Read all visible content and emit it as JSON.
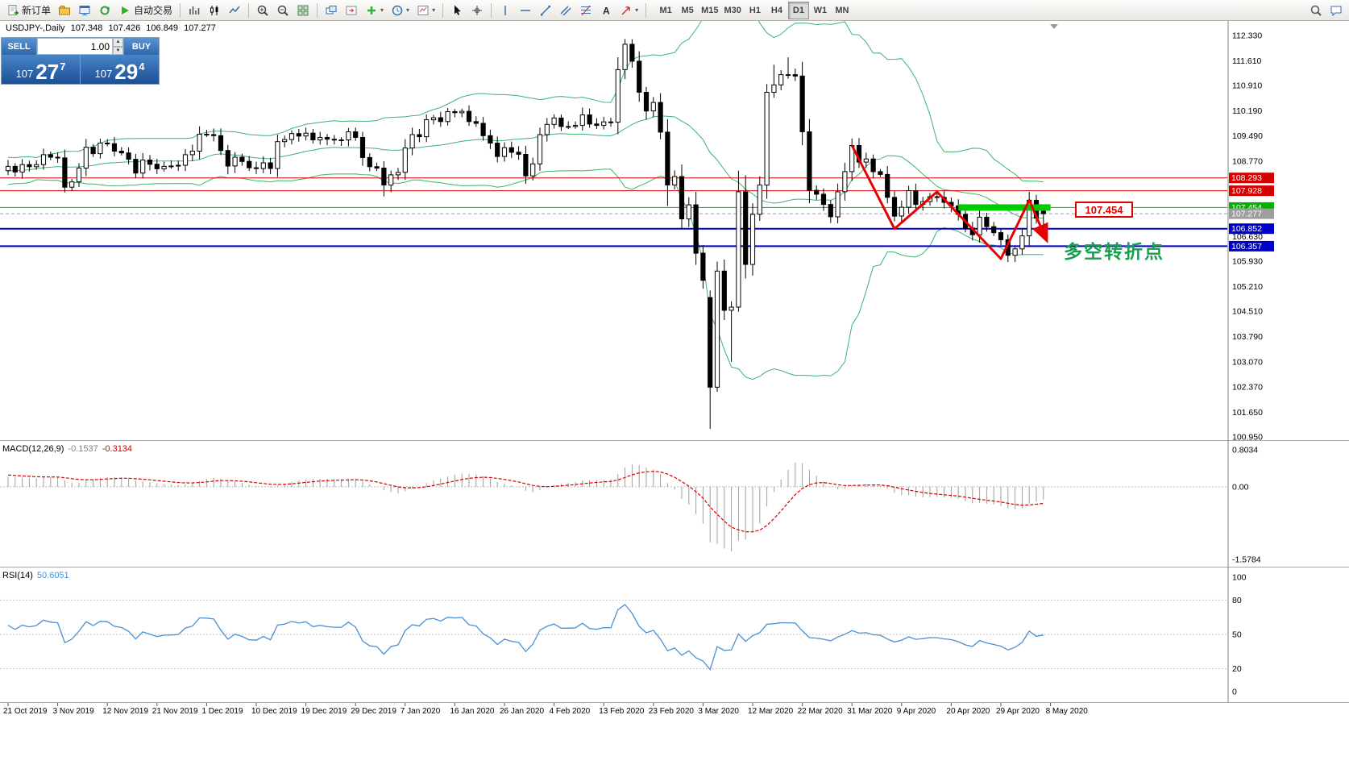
{
  "header": {
    "symbol": "USDJPY-,Daily",
    "open": "107.348",
    "high": "107.426",
    "low": "106.849",
    "close": "107.277"
  },
  "toolbar": {
    "new_order_label": "新订单",
    "autotrading_label": "自动交易",
    "timeframes": [
      "M1",
      "M5",
      "M15",
      "M30",
      "H1",
      "H4",
      "D1",
      "W1",
      "MN"
    ],
    "active_timeframe": "D1"
  },
  "icons": {
    "dropdown": "▾",
    "spinner_up": "▲",
    "spinner_down": "▼",
    "text_tool": "A"
  },
  "trade_panel": {
    "sell_label": "SELL",
    "buy_label": "BUY",
    "volume": "1.00",
    "sell_price": {
      "prefix": "107",
      "big": "27",
      "sup": "7"
    },
    "buy_price": {
      "prefix": "107",
      "big": "29",
      "sup": "4"
    }
  },
  "indicators": {
    "macd_name": "MACD(12,26,9)",
    "macd_main": "-0.1537",
    "macd_signal": "-0.3134",
    "rsi_name": "RSI(14)",
    "rsi_value": "50.6051"
  },
  "annotations": {
    "turning_point": "多空转折点",
    "level_label": "107.454"
  },
  "colors": {
    "bull": "#ffffff",
    "bear": "#000000",
    "outline": "#000000",
    "bollinger": "#3cb371",
    "zone": "#00cc00",
    "zigzag": "#e60000",
    "macd_hist": "#9e9e9e",
    "macd_signal": "#d40000",
    "rsi_line": "#4a90d2",
    "current": "#9e9e9e",
    "accent_blue": "#2f66ac",
    "annotation_green": "#15a04c",
    "hline_red": "#d40000",
    "hline_green": "#00b300",
    "hline_blue": "#0000cc"
  },
  "chart_data": {
    "type": "candlestick",
    "symbol": "USDJPY",
    "period": "Daily",
    "current_bar": {
      "open": 107.348,
      "high": 107.426,
      "low": 106.849,
      "close": 107.277
    },
    "y_axis": {
      "top_price": 112.33,
      "bottom_price": 100.95
    },
    "pre_closes": [
      107.05,
      107.25,
      107.45,
      107.2,
      106.95,
      107.25,
      107.55,
      107.8,
      108.05,
      107.85,
      107.6,
      107.9,
      108.1,
      108.0,
      107.7,
      107.45,
      107.2,
      107.05,
      107.35,
      107.65,
      107.95,
      108.25,
      108.45,
      108.3,
      108.1,
      108.4,
      108.6,
      108.5,
      108.3,
      108.2,
      108.45,
      108.7,
      108.6,
      108.5,
      108.7,
      108.9,
      108.7,
      108.6,
      108.4,
      108.5
    ],
    "closes": [
      108.62,
      108.46,
      108.67,
      108.61,
      108.67,
      108.95,
      108.88,
      108.86,
      108.03,
      108.18,
      108.57,
      109.16,
      108.98,
      109.28,
      109.26,
      109.05,
      109.0,
      108.82,
      108.43,
      108.8,
      108.68,
      108.55,
      108.62,
      108.63,
      108.65,
      108.95,
      109.05,
      109.53,
      109.52,
      109.49,
      109.07,
      108.63,
      108.88,
      108.76,
      108.58,
      108.56,
      108.72,
      108.56,
      109.32,
      109.38,
      109.55,
      109.48,
      109.56,
      109.37,
      109.44,
      109.39,
      109.37,
      109.37,
      109.6,
      109.44,
      108.87,
      108.61,
      108.57,
      108.09,
      108.38,
      108.45,
      109.14,
      109.52,
      109.46,
      109.94,
      110.0,
      109.89,
      110.17,
      110.14,
      110.18,
      109.89,
      109.84,
      109.49,
      109.28,
      108.9,
      109.15,
      109.02,
      108.96,
      108.35,
      108.69,
      109.52,
      109.81,
      109.99,
      109.75,
      109.75,
      109.78,
      110.08,
      109.82,
      109.78,
      109.88,
      109.87,
      111.36,
      112.08,
      111.6,
      110.72,
      110.19,
      110.43,
      109.59,
      108.09,
      108.33,
      107.13,
      107.53,
      106.16,
      105.39,
      102.36,
      105.65,
      104.54,
      104.63,
      107.9,
      105.84,
      107.26,
      108.09,
      110.72,
      110.93,
      111.22,
      111.22,
      111.18,
      109.6,
      107.94,
      107.83,
      107.54,
      107.19,
      107.9,
      108.47,
      109.21,
      108.74,
      108.83,
      108.47,
      108.39,
      107.74,
      107.21,
      107.46,
      107.93,
      107.54,
      107.62,
      107.76,
      107.74,
      107.6,
      107.5,
      107.26,
      106.87,
      106.68,
      107.18,
      106.91,
      106.74,
      106.54,
      106.1,
      106.28,
      106.65,
      107.66,
      107.15,
      107.277
    ],
    "overrides": {
      "8": {
        "l": 107.88
      },
      "53": {
        "l": 107.77
      },
      "87": {
        "h": 112.23
      },
      "93": {
        "l": 107.5
      },
      "99": {
        "o": 104.9,
        "h": 105.1,
        "l": 101.18
      },
      "100": {
        "h": 105.92,
        "l": 102.23
      },
      "102": {
        "l": 103.08
      },
      "103": {
        "h": 108.5,
        "l": 104.5
      },
      "107": {
        "h": 110.95,
        "l": 107.7
      },
      "108": {
        "h": 111.5
      },
      "110": {
        "h": 111.71
      },
      "146": {
        "o": 107.348,
        "h": 107.426,
        "l": 106.849
      }
    },
    "hlines": [
      {
        "price": 108.293,
        "label": "108.293",
        "color": "#d40000",
        "width": 1
      },
      {
        "price": 107.928,
        "label": "107.928",
        "color": "#d40000",
        "width": 1
      },
      {
        "price": 107.454,
        "label": "107.454",
        "color": "#00b300",
        "width": 1
      },
      {
        "price": 106.852,
        "label": "106.852",
        "color": "#0000cc",
        "width": 2
      },
      {
        "price": 106.357,
        "label": "106.357",
        "color": "#0000cc",
        "width": 2
      }
    ],
    "current": {
      "price": 107.277,
      "label": "107.277"
    },
    "zone": {
      "price": 107.454,
      "from_bar": 134,
      "to_bar": 147
    },
    "zigzag": [
      [
        119,
        109.21
      ],
      [
        125,
        106.85
      ],
      [
        131,
        107.9
      ],
      [
        140,
        106.0
      ],
      [
        144,
        107.66
      ],
      [
        146.5,
        106.5
      ]
    ],
    "price_axis_labels": [
      "112.330",
      "111.610",
      "110.910",
      "110.190",
      "109.490",
      "108.770",
      "106.630",
      "105.930",
      "105.210",
      "104.510",
      "103.790",
      "103.070",
      "102.370",
      "101.650",
      "100.950"
    ],
    "macd_axis": [
      {
        "label": "0.8034",
        "value": 0.8034
      },
      {
        "label": "0.00",
        "value": 0
      },
      {
        "label": "-1.5784",
        "value": -1.5784
      }
    ],
    "rsi_axis": [
      {
        "label": "100",
        "value": 100
      },
      {
        "label": "80",
        "value": 80
      },
      {
        "label": "50",
        "value": 50
      },
      {
        "label": "20",
        "value": 20
      },
      {
        "label": "0",
        "value": 0
      }
    ],
    "rsi_levels": [
      80,
      50,
      20
    ],
    "bollinger": {
      "period": 20,
      "deviation": 2
    },
    "macd_params": {
      "fast": 12,
      "slow": 26,
      "signal": 9
    },
    "rsi_params": {
      "period": 14
    },
    "date_labels": [
      "21 Oct 2019",
      "3 Nov 2019",
      "12 Nov 2019",
      "21 Nov 2019",
      "1 Dec 2019",
      "10 Dec 2019",
      "19 Dec 2019",
      "29 Dec 2019",
      "7 Jan 2020",
      "16 Jan 2020",
      "26 Jan 2020",
      "4 Feb 2020",
      "13 Feb 2020",
      "23 Feb 2020",
      "3 Mar 2020",
      "12 Mar 2020",
      "22 Mar 2020",
      "31 Mar 2020",
      "9 Apr 2020",
      "20 Apr 2020",
      "29 Apr 2020",
      "8 May 2020"
    ]
  }
}
